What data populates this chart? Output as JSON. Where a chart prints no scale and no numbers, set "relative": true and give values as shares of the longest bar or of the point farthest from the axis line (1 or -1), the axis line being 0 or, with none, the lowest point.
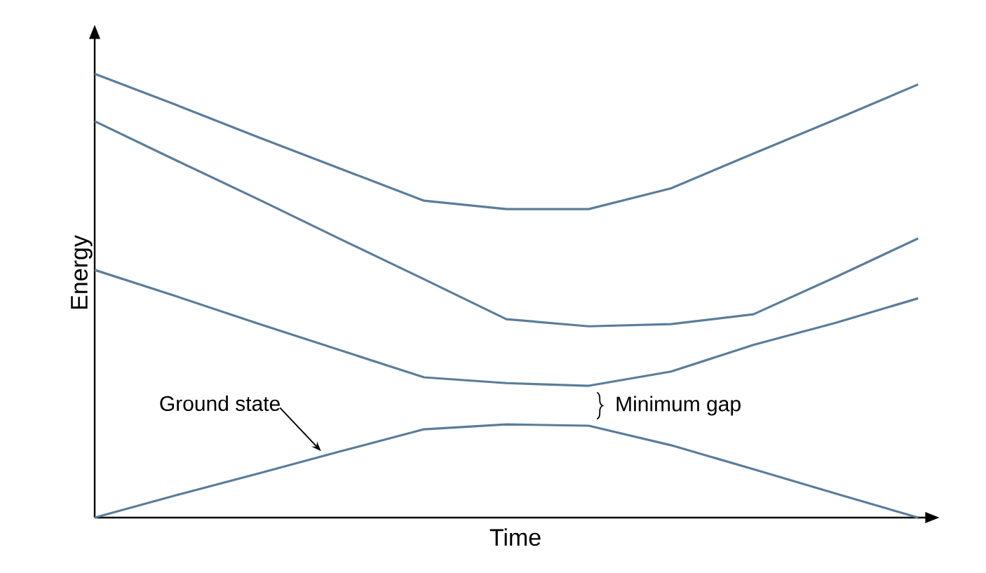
{
  "chart_data": {
    "type": "line",
    "relative": true,
    "xlabel": "Time",
    "ylabel": "Energy",
    "marker": "none",
    "line_style": "solid",
    "categories": [
      null,
      null,
      null,
      null,
      null,
      null,
      null,
      null,
      null,
      null,
      null
    ],
    "series": [
      {
        "color": "#5a7d9a",
        "values": [
          1.0,
          0.929,
          0.856,
          0.785,
          0.714,
          0.695,
          0.695,
          0.742,
          0.82,
          0.897,
          0.976
        ]
      },
      {
        "color": "#5a7d9a",
        "values": [
          0.893,
          0.804,
          0.716,
          0.626,
          0.537,
          0.447,
          0.431,
          0.436,
          0.458,
          0.542,
          0.629
        ]
      },
      {
        "color": "#5a7d9a",
        "values": [
          0.558,
          0.498,
          0.436,
          0.376,
          0.316,
          0.303,
          0.297,
          0.329,
          0.389,
          0.439,
          0.494
        ]
      },
      {
        "color": "#5a7d9a",
        "values": [
          0.0,
          0.051,
          0.1,
          0.15,
          0.199,
          0.21,
          0.207,
          0.163,
          0.109,
          0.054,
          0.0
        ]
      }
    ],
    "annotations": [
      "Ground state",
      "Minimum gap"
    ]
  }
}
